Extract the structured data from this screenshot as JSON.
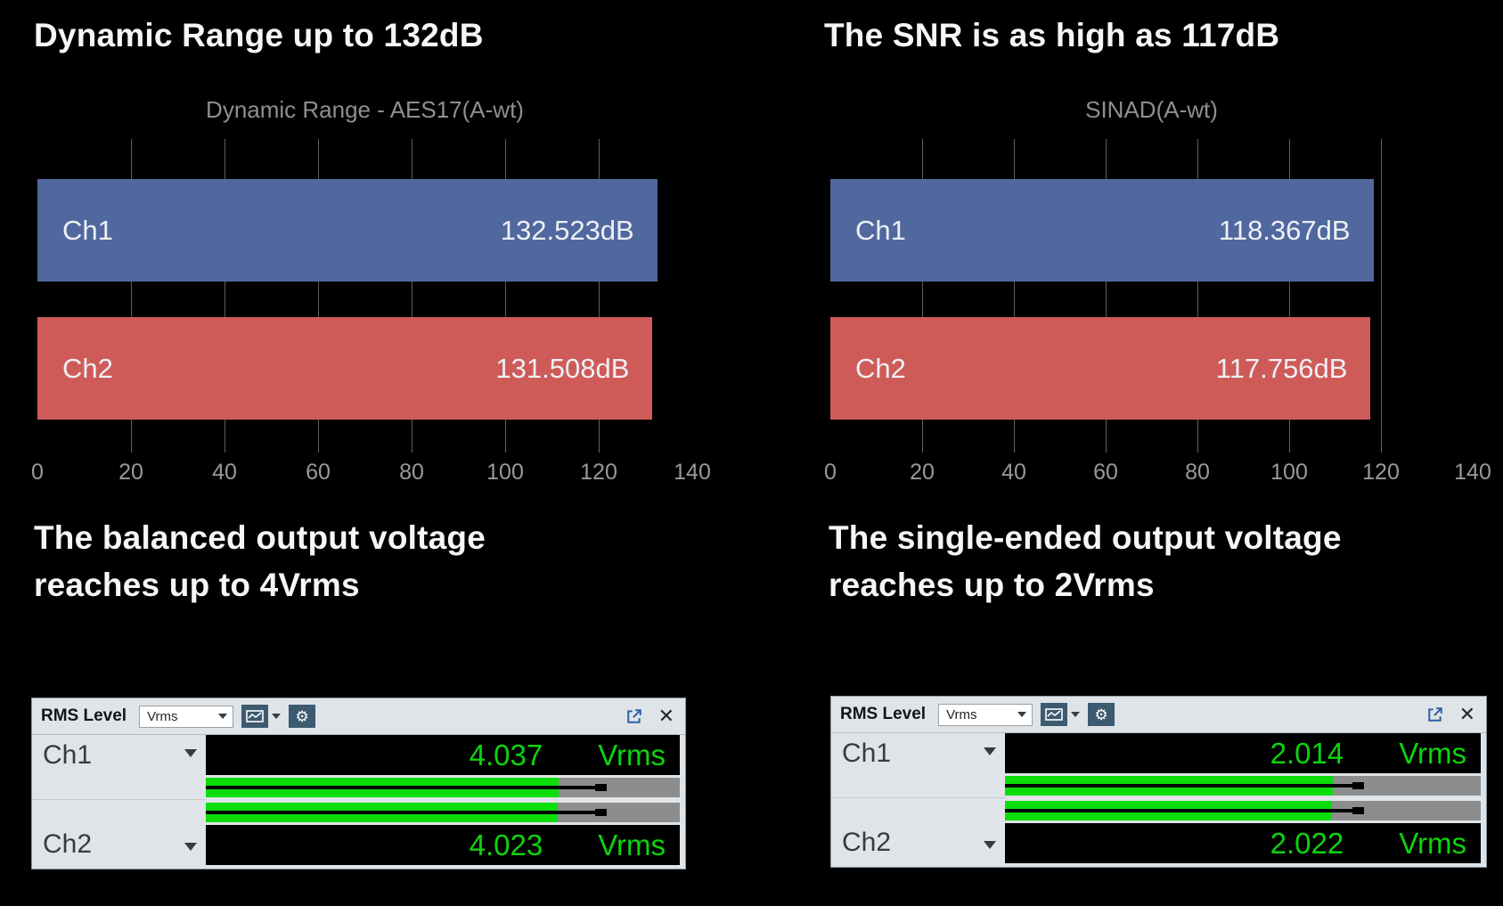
{
  "headings": {
    "dynamic_range": "Dynamic Range up to 132dB",
    "snr": "The SNR is as high as 117dB",
    "balanced_line1": "The balanced output voltage",
    "balanced_line2": "reaches up to 4Vrms",
    "single_line1": "The single-ended output voltage",
    "single_line2": "reaches up to 2Vrms"
  },
  "colors": {
    "background": "#000000",
    "bar_blue": "#50689e",
    "bar_red": "#cf5b59",
    "gridline": "#5f5f5f",
    "meter_green": "#0ed30e",
    "meter_panel": "#dfe4e8",
    "icon_slate": "#3c5a70",
    "popout_blue": "#2d5fa6"
  },
  "chart_data": [
    {
      "id": "dynamic-range",
      "type": "bar",
      "orientation": "horizontal",
      "title": "Dynamic Range - AES17(A-wt)",
      "categories": [
        "Ch1",
        "Ch2"
      ],
      "values": [
        132.523,
        131.508
      ],
      "value_labels": [
        "132.523dB",
        "131.508dB"
      ],
      "bar_colors": [
        "#50689e",
        "#cf5b59"
      ],
      "xlim": [
        0,
        140
      ],
      "xticks": [
        0,
        20,
        40,
        60,
        80,
        100,
        120,
        140
      ],
      "gridlines": [
        20,
        40,
        60,
        80,
        100,
        120
      ],
      "grid": "on",
      "legend": "none"
    },
    {
      "id": "sinad",
      "type": "bar",
      "orientation": "horizontal",
      "title": "SINAD(A-wt)",
      "categories": [
        "Ch1",
        "Ch2"
      ],
      "values": [
        118.367,
        117.756
      ],
      "value_labels": [
        "118.367dB",
        "117.756dB"
      ],
      "bar_colors": [
        "#50689e",
        "#cf5b59"
      ],
      "xlim": [
        0,
        140
      ],
      "xticks": [
        0,
        20,
        40,
        60,
        80,
        100,
        120,
        140
      ],
      "gridlines": [
        20,
        40,
        60,
        80,
        100,
        120
      ],
      "grid": "on",
      "legend": "none"
    },
    {
      "id": "rms-level-balanced",
      "type": "table",
      "widget_title": "RMS Level",
      "unit_selector": "Vrms",
      "channels": [
        {
          "label": "Ch1",
          "value": "4.037",
          "unit": "Vrms",
          "bar_pct": 74.5,
          "peak_pct": 84.5
        },
        {
          "label": "Ch2",
          "value": "4.023",
          "unit": "Vrms",
          "bar_pct": 74.2,
          "peak_pct": 84.5
        }
      ]
    },
    {
      "id": "rms-level-single-ended",
      "type": "table",
      "widget_title": "RMS Level",
      "unit_selector": "Vrms",
      "channels": [
        {
          "label": "Ch1",
          "value": "2.014",
          "unit": "Vrms",
          "bar_pct": 69.0,
          "peak_pct": 75.5
        },
        {
          "label": "Ch2",
          "value": "2.022",
          "unit": "Vrms",
          "bar_pct": 68.8,
          "peak_pct": 75.5
        }
      ]
    }
  ]
}
